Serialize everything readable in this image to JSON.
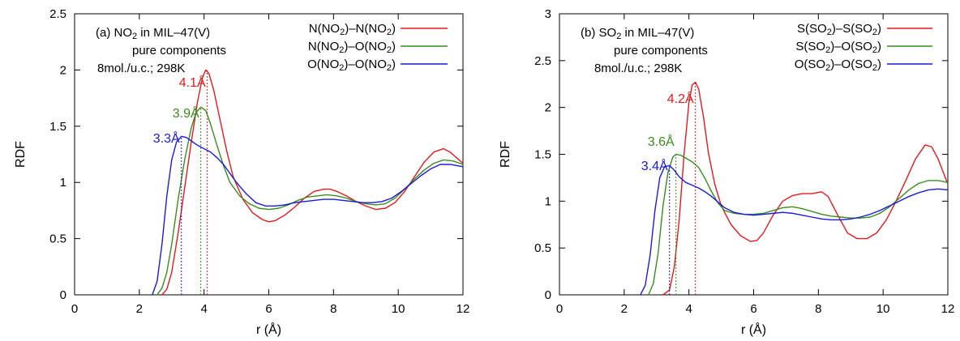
{
  "chart_data": [
    {
      "type": "line",
      "panel_label": "(a)",
      "title_lines": [
        "(a) NO2 in MIL–47(V)",
        "pure components",
        "8mol./u.c.; 298K"
      ],
      "title_parts": {
        "pre": "(a) NO",
        "sub": "2",
        "post": " in MIL–47(V)"
      },
      "xlabel": "r (Å)",
      "ylabel": "RDF",
      "xlim": [
        0,
        12
      ],
      "ylim": [
        0,
        2.5
      ],
      "x_ticks": [
        0,
        2,
        4,
        6,
        8,
        10,
        12
      ],
      "x_tick_labels": [
        "0",
        "2",
        "4",
        "6",
        "8",
        "10",
        "12"
      ],
      "y_ticks": [
        0,
        0.5,
        1,
        1.5,
        2,
        2.5
      ],
      "y_tick_labels": [
        "0",
        "0.5",
        "1",
        "1.5",
        "2",
        "2.5"
      ],
      "legend_position": "top-right",
      "series": [
        {
          "name": "N(NO2)–N(NO2)",
          "label_parts": [
            [
              "N(NO",
              false
            ],
            [
              "2",
              true
            ],
            [
              ")–N(NO",
              false
            ],
            [
              "2",
              true
            ],
            [
              ")",
              false
            ]
          ],
          "color": "#e41a1c",
          "x": [
            2.7,
            2.85,
            3.0,
            3.2,
            3.4,
            3.6,
            3.8,
            3.95,
            4.05,
            4.15,
            4.3,
            4.5,
            4.7,
            4.9,
            5.2,
            5.5,
            5.8,
            6.0,
            6.2,
            6.5,
            6.8,
            7.1,
            7.4,
            7.7,
            7.9,
            8.1,
            8.4,
            8.7,
            9.0,
            9.3,
            9.6,
            9.9,
            10.2,
            10.5,
            10.8,
            11.1,
            11.4,
            11.6,
            11.8,
            12.0
          ],
          "y": [
            0.0,
            0.05,
            0.2,
            0.55,
            0.95,
            1.35,
            1.72,
            1.93,
            2.0,
            1.97,
            1.82,
            1.55,
            1.28,
            1.05,
            0.85,
            0.73,
            0.67,
            0.65,
            0.66,
            0.71,
            0.78,
            0.86,
            0.92,
            0.94,
            0.94,
            0.92,
            0.88,
            0.83,
            0.79,
            0.76,
            0.77,
            0.82,
            0.92,
            1.05,
            1.18,
            1.27,
            1.3,
            1.27,
            1.22,
            1.17
          ],
          "peak": {
            "x": 4.1,
            "label": "4.1Å"
          }
        },
        {
          "name": "N(NO2)–O(NO2)",
          "label_parts": [
            [
              "N(NO",
              false
            ],
            [
              "2",
              true
            ],
            [
              ")–O(NO",
              false
            ],
            [
              "2",
              true
            ],
            [
              ")",
              false
            ]
          ],
          "color": "#3a8c1f",
          "x": [
            2.55,
            2.7,
            2.85,
            3.0,
            3.2,
            3.4,
            3.6,
            3.75,
            3.9,
            4.05,
            4.2,
            4.4,
            4.6,
            4.8,
            5.1,
            5.4,
            5.7,
            6.0,
            6.3,
            6.6,
            6.9,
            7.2,
            7.5,
            7.8,
            8.1,
            8.4,
            8.7,
            9.0,
            9.3,
            9.6,
            9.9,
            10.2,
            10.5,
            10.8,
            11.1,
            11.4,
            11.7,
            12.0
          ],
          "y": [
            0.0,
            0.06,
            0.2,
            0.45,
            0.85,
            1.2,
            1.48,
            1.62,
            1.67,
            1.64,
            1.52,
            1.33,
            1.15,
            1.0,
            0.88,
            0.81,
            0.77,
            0.76,
            0.77,
            0.8,
            0.84,
            0.87,
            0.88,
            0.89,
            0.88,
            0.86,
            0.83,
            0.81,
            0.8,
            0.81,
            0.86,
            0.94,
            1.03,
            1.11,
            1.17,
            1.2,
            1.19,
            1.16
          ],
          "peak": {
            "x": 3.9,
            "label": "3.9Å"
          }
        },
        {
          "name": "O(NO2)–O(NO2)",
          "label_parts": [
            [
              "O(NO",
              false
            ],
            [
              "2",
              true
            ],
            [
              ")–O(NO",
              false
            ],
            [
              "2",
              true
            ],
            [
              ")",
              false
            ]
          ],
          "color": "#1a1adb",
          "x": [
            2.4,
            2.55,
            2.7,
            2.85,
            3.0,
            3.15,
            3.3,
            3.45,
            3.6,
            3.8,
            4.0,
            4.2,
            4.4,
            4.6,
            4.8,
            5.0,
            5.3,
            5.6,
            5.9,
            6.2,
            6.5,
            6.8,
            7.1,
            7.4,
            7.7,
            8.0,
            8.3,
            8.6,
            8.9,
            9.2,
            9.5,
            9.8,
            10.1,
            10.4,
            10.7,
            11.0,
            11.3,
            11.6,
            12.0
          ],
          "y": [
            0.0,
            0.12,
            0.45,
            0.88,
            1.2,
            1.36,
            1.41,
            1.4,
            1.37,
            1.33,
            1.3,
            1.27,
            1.22,
            1.16,
            1.08,
            1.0,
            0.9,
            0.82,
            0.79,
            0.79,
            0.8,
            0.82,
            0.83,
            0.84,
            0.85,
            0.85,
            0.84,
            0.83,
            0.82,
            0.82,
            0.83,
            0.86,
            0.92,
            0.99,
            1.06,
            1.12,
            1.16,
            1.16,
            1.14
          ],
          "peak": {
            "x": 3.3,
            "label": "3.3Å"
          }
        }
      ]
    },
    {
      "type": "line",
      "panel_label": "(b)",
      "title_lines": [
        "(b) SO2 in MIL–47(V)",
        "pure components",
        "8mol./u.c.; 298K"
      ],
      "title_parts": {
        "pre": "(b) SO",
        "sub": "2",
        "post": " in MIL–47(V)"
      },
      "xlabel": "r (Å)",
      "ylabel": "RDF",
      "xlim": [
        0,
        12
      ],
      "ylim": [
        0,
        3
      ],
      "x_ticks": [
        0,
        2,
        4,
        6,
        8,
        10,
        12
      ],
      "x_tick_labels": [
        "0",
        "2",
        "4",
        "6",
        "8",
        "10",
        "12"
      ],
      "y_ticks": [
        0,
        0.5,
        1,
        1.5,
        2,
        2.5,
        3
      ],
      "y_tick_labels": [
        "0",
        "0.5",
        "1",
        "1.5",
        "2",
        "2.5",
        "3"
      ],
      "legend_position": "top-right",
      "series": [
        {
          "name": "S(SO2)–S(SO2)",
          "label_parts": [
            [
              "S(SO",
              false
            ],
            [
              "2",
              true
            ],
            [
              ")–S(SO",
              false
            ],
            [
              "2",
              true
            ],
            [
              ")",
              false
            ]
          ],
          "color": "#e41a1c",
          "x": [
            3.2,
            3.4,
            3.55,
            3.7,
            3.85,
            4.0,
            4.1,
            4.2,
            4.3,
            4.45,
            4.6,
            4.8,
            5.0,
            5.3,
            5.6,
            5.9,
            6.1,
            6.3,
            6.6,
            6.9,
            7.2,
            7.5,
            7.8,
            8.1,
            8.3,
            8.6,
            8.9,
            9.2,
            9.5,
            9.8,
            10.1,
            10.4,
            10.7,
            11.0,
            11.3,
            11.5,
            11.7,
            12.0
          ],
          "y": [
            0.0,
            0.05,
            0.3,
            0.8,
            1.5,
            2.05,
            2.24,
            2.27,
            2.2,
            1.9,
            1.52,
            1.18,
            0.95,
            0.75,
            0.63,
            0.57,
            0.58,
            0.66,
            0.85,
            1.0,
            1.06,
            1.08,
            1.08,
            1.1,
            1.05,
            0.85,
            0.66,
            0.6,
            0.6,
            0.66,
            0.8,
            1.0,
            1.22,
            1.45,
            1.6,
            1.58,
            1.45,
            1.18
          ],
          "peak": {
            "x": 4.2,
            "label": "4.2Å"
          }
        },
        {
          "name": "S(SO2)–O(SO2)",
          "label_parts": [
            [
              "S(SO",
              false
            ],
            [
              "2",
              true
            ],
            [
              ")–O(SO",
              false
            ],
            [
              "2",
              true
            ],
            [
              ")",
              false
            ]
          ],
          "color": "#3a8c1f",
          "x": [
            2.75,
            2.9,
            3.05,
            3.2,
            3.35,
            3.5,
            3.6,
            3.75,
            3.9,
            4.1,
            4.3,
            4.5,
            4.7,
            4.9,
            5.1,
            5.4,
            5.7,
            6.0,
            6.3,
            6.6,
            6.9,
            7.2,
            7.5,
            7.8,
            8.1,
            8.4,
            8.7,
            9.0,
            9.3,
            9.6,
            9.9,
            10.2,
            10.5,
            10.8,
            11.1,
            11.4,
            11.7,
            12.0
          ],
          "y": [
            0.0,
            0.12,
            0.45,
            0.95,
            1.3,
            1.47,
            1.5,
            1.49,
            1.46,
            1.42,
            1.36,
            1.24,
            1.1,
            0.98,
            0.9,
            0.87,
            0.86,
            0.86,
            0.87,
            0.9,
            0.93,
            0.94,
            0.92,
            0.89,
            0.86,
            0.84,
            0.83,
            0.82,
            0.82,
            0.83,
            0.87,
            0.94,
            1.03,
            1.12,
            1.19,
            1.22,
            1.22,
            1.2
          ],
          "peak": {
            "x": 3.6,
            "label": "3.6Å"
          }
        },
        {
          "name": "O(SO2)–O(SO2)",
          "label_parts": [
            [
              "O(SO",
              false
            ],
            [
              "2",
              true
            ],
            [
              ")–O(SO",
              false
            ],
            [
              "2",
              true
            ],
            [
              ")",
              false
            ]
          ],
          "color": "#1a1adb",
          "x": [
            2.5,
            2.65,
            2.8,
            2.95,
            3.1,
            3.25,
            3.4,
            3.55,
            3.7,
            3.9,
            4.1,
            4.3,
            4.5,
            4.7,
            4.9,
            5.1,
            5.4,
            5.7,
            6.0,
            6.3,
            6.6,
            6.9,
            7.2,
            7.5,
            7.8,
            8.1,
            8.4,
            8.7,
            9.0,
            9.3,
            9.6,
            9.9,
            10.2,
            10.5,
            10.8,
            11.1,
            11.4,
            11.7,
            12.0
          ],
          "y": [
            0.0,
            0.1,
            0.42,
            0.9,
            1.25,
            1.37,
            1.38,
            1.33,
            1.26,
            1.2,
            1.17,
            1.14,
            1.1,
            1.05,
            0.99,
            0.93,
            0.88,
            0.86,
            0.85,
            0.86,
            0.87,
            0.88,
            0.87,
            0.85,
            0.83,
            0.81,
            0.8,
            0.8,
            0.81,
            0.83,
            0.86,
            0.9,
            0.95,
            1.0,
            1.05,
            1.09,
            1.12,
            1.13,
            1.12
          ],
          "peak": {
            "x": 3.4,
            "label": "3.4Å"
          }
        }
      ]
    }
  ]
}
